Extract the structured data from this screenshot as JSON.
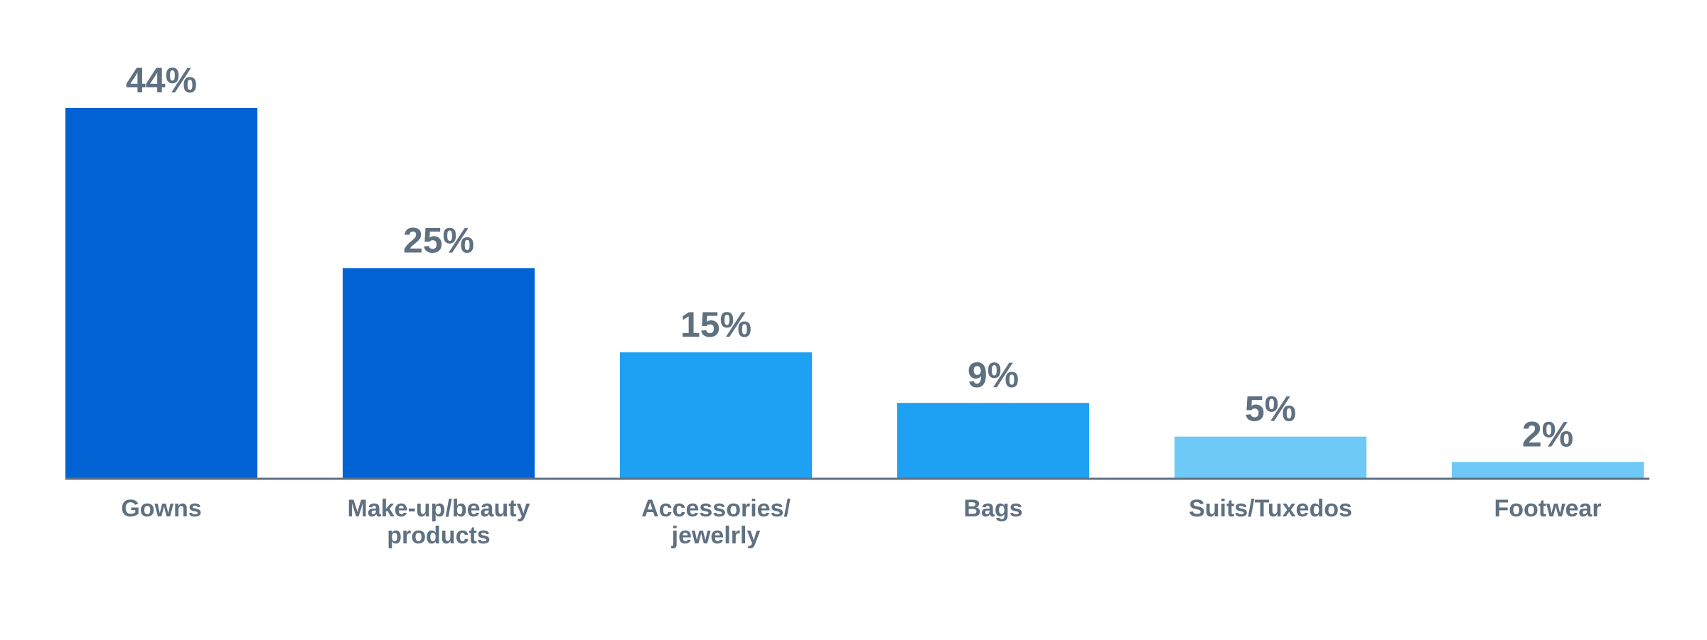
{
  "chart_data": {
    "type": "bar",
    "categories": [
      [
        "Gowns"
      ],
      [
        "Make-up/beauty",
        "products"
      ],
      [
        "Accessories/",
        "jewelrly"
      ],
      [
        "Bags"
      ],
      [
        "Suits/Tuxedos"
      ],
      [
        "Footwear"
      ]
    ],
    "values": [
      44,
      25,
      15,
      9,
      5,
      2
    ],
    "value_labels": [
      "44%",
      "25%",
      "15%",
      "9%",
      "5%",
      "2%"
    ],
    "colors": [
      "#0062d3",
      "#0062d3",
      "#1ea1f2",
      "#1ea1f2",
      "#6ec9f6",
      "#6ec9f6"
    ]
  }
}
